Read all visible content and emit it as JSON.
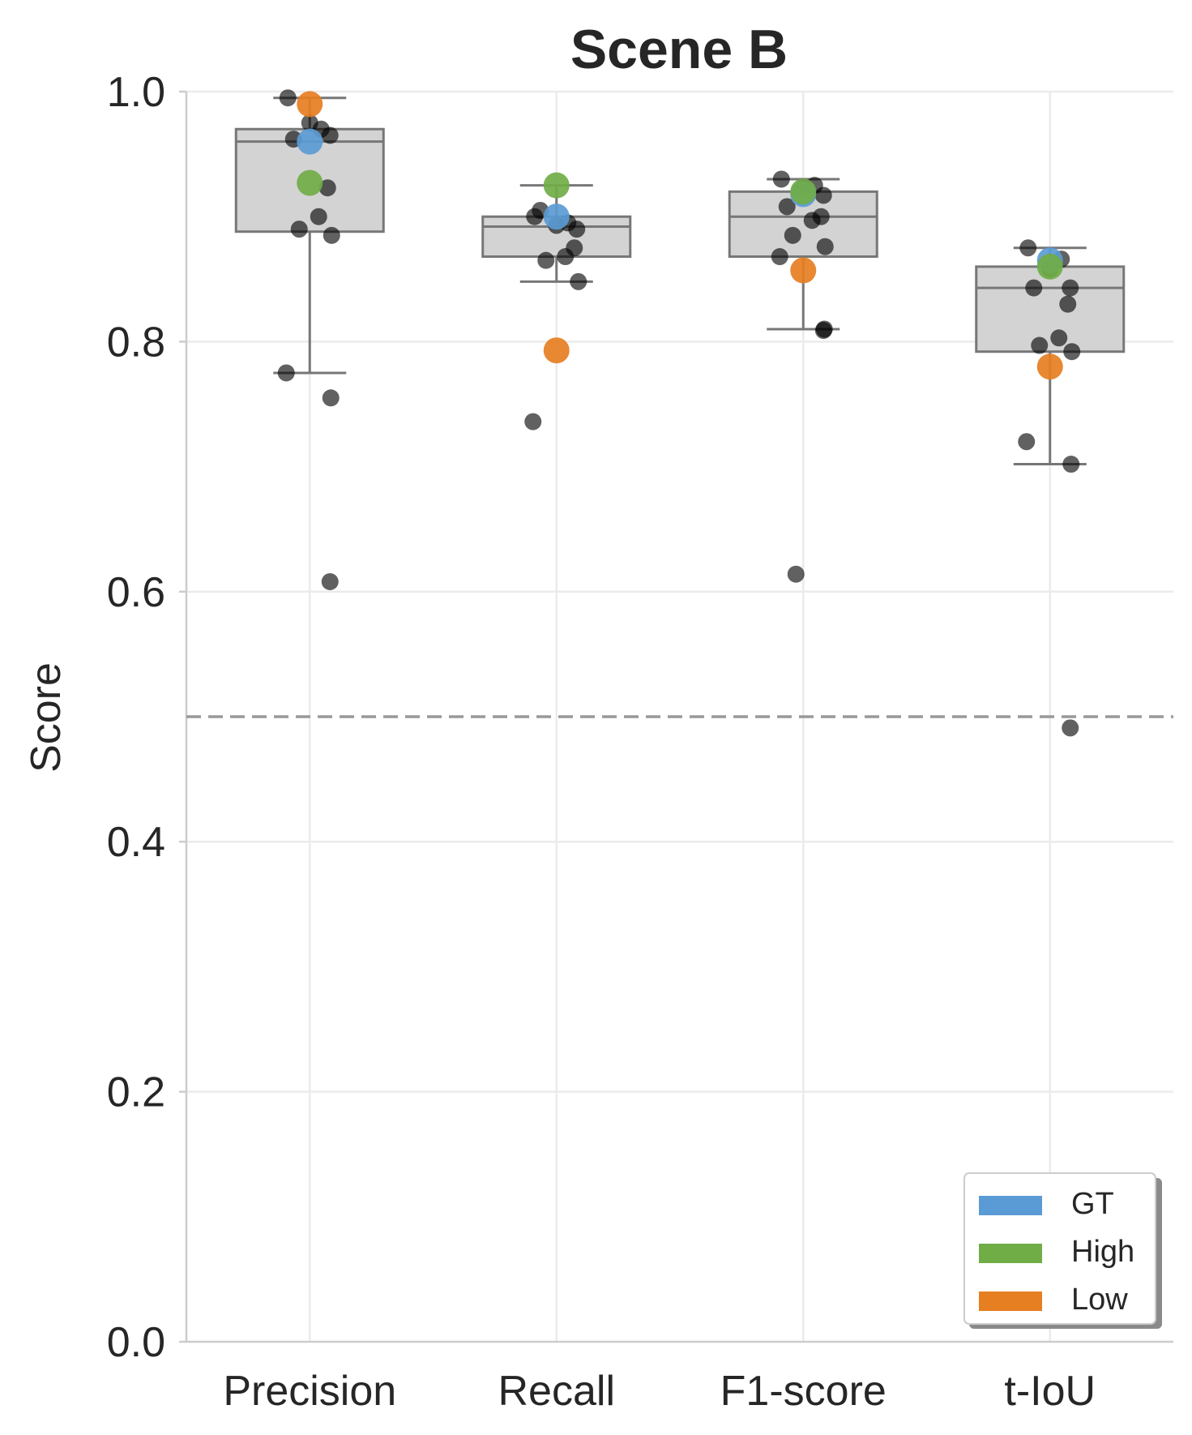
{
  "chart_data": {
    "type": "box",
    "title": "Scene B",
    "xlabel": "",
    "ylabel": "Score",
    "ylim": [
      0,
      1
    ],
    "yticks": [
      0.0,
      0.2,
      0.4,
      0.6,
      0.8,
      1.0
    ],
    "ytick_labels": [
      "0.0",
      "0.2",
      "0.4",
      "0.6",
      "0.8",
      "1.0"
    ],
    "reference_line": 0.5,
    "grid": true,
    "categories": [
      "Precision",
      "Recall",
      "F1-score",
      "t-IoU"
    ],
    "boxes": [
      {
        "whisker_low": 0.775,
        "q1": 0.888,
        "median": 0.96,
        "q3": 0.97,
        "whisker_high": 0.995
      },
      {
        "whisker_low": 0.848,
        "q1": 0.868,
        "median": 0.892,
        "q3": 0.9,
        "whisker_high": 0.925
      },
      {
        "whisker_low": 0.81,
        "q1": 0.868,
        "median": 0.9,
        "q3": 0.92,
        "whisker_high": 0.93
      },
      {
        "whisker_low": 0.702,
        "q1": 0.792,
        "median": 0.843,
        "q3": 0.86,
        "whisker_high": 0.875
      }
    ],
    "points": [
      [
        0.995,
        0.97,
        0.975,
        0.965,
        0.962,
        0.923,
        0.9,
        0.89,
        0.885,
        0.775,
        0.755,
        0.608
      ],
      [
        0.9,
        0.895,
        0.893,
        0.89,
        0.905,
        0.875,
        0.868,
        0.865,
        0.848,
        0.736
      ],
      [
        0.93,
        0.925,
        0.923,
        0.917,
        0.908,
        0.9,
        0.897,
        0.885,
        0.876,
        0.868,
        0.81,
        0.809,
        0.614
      ],
      [
        0.875,
        0.866,
        0.858,
        0.843,
        0.843,
        0.83,
        0.803,
        0.797,
        0.792,
        0.72,
        0.702,
        0.491
      ]
    ],
    "series": [
      {
        "name": "GT",
        "color": "#5b9bd5",
        "values": [
          0.96,
          0.9,
          0.918,
          0.865
        ]
      },
      {
        "name": "High",
        "color": "#70ad47",
        "values": [
          0.927,
          0.925,
          0.92,
          0.86
        ]
      },
      {
        "name": "Low",
        "color": "#e67e22",
        "values": [
          0.99,
          0.793,
          0.857,
          0.78
        ]
      }
    ],
    "legend_position": "lower-right"
  }
}
